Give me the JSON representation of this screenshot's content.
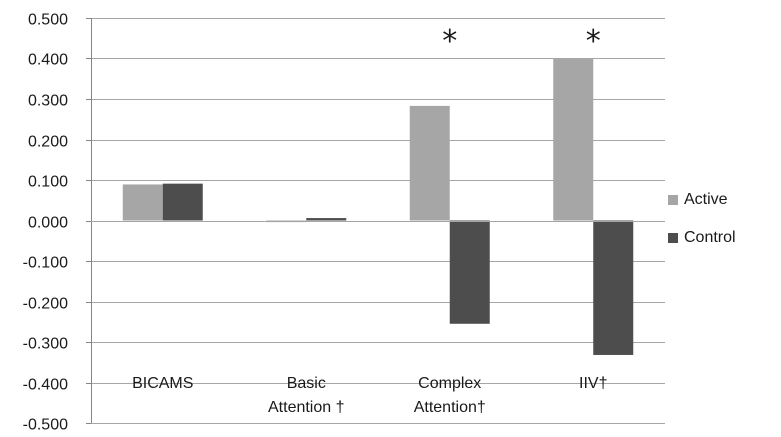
{
  "chart_data": {
    "type": "bar",
    "categories": [
      "BICAMS",
      "Basic\nAttention  †",
      "Complex\nAttention†",
      "IIV†"
    ],
    "series": [
      {
        "name": "Active",
        "color": "#a6a6a6",
        "values": [
          0.089,
          -0.004,
          0.283,
          0.4
        ]
      },
      {
        "name": "Control",
        "color": "#4d4d4d",
        "values": [
          0.091,
          0.006,
          -0.255,
          -0.332
        ]
      }
    ],
    "y_ticks": [
      "0.500",
      "0.400",
      "0.300",
      "0.200",
      "0.100",
      "0.000",
      "-0.100",
      "-0.200",
      "-0.300",
      "-0.400",
      "-0.500"
    ],
    "ylim": [
      -0.5,
      0.5
    ],
    "grid": true,
    "legend_position": "right",
    "annotations": [
      {
        "category_index": 2,
        "text": "*"
      },
      {
        "category_index": 3,
        "text": "*"
      }
    ],
    "title": "",
    "xlabel": "",
    "ylabel": ""
  }
}
